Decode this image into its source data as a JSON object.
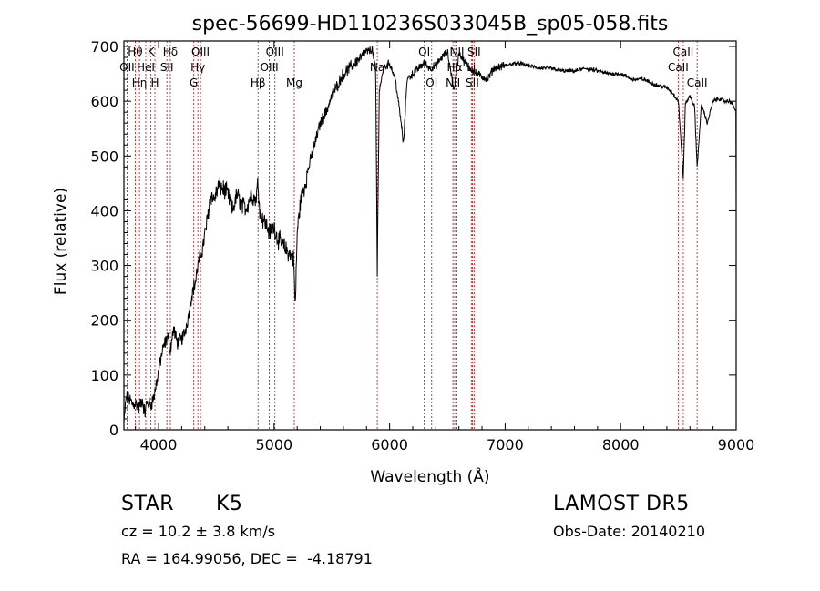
{
  "chart_data": {
    "type": "line",
    "title": "spec-56699-HD110236S033045B_sp05-058.fits",
    "xlabel": "Wavelength (Å)",
    "ylabel": "Flux (relative)",
    "xlim": [
      3700,
      9000
    ],
    "ylim": [
      0,
      710
    ],
    "xticks": [
      4000,
      5000,
      6000,
      7000,
      8000,
      9000
    ],
    "yticks": [
      0,
      100,
      200,
      300,
      400,
      500,
      600,
      700
    ],
    "grid": false,
    "line_color": "#000000",
    "marker_color": "#cc0000",
    "series": [
      {
        "x": [
          3700,
          3720,
          3750,
          3780,
          3800,
          3830,
          3860,
          3880,
          3900,
          3930,
          3960,
          3990,
          4010,
          4030,
          4050,
          4080,
          4100,
          4130,
          4160,
          4200,
          4230,
          4260,
          4290,
          4320,
          4340,
          4380,
          4420,
          4450,
          4480,
          4520,
          4560,
          4600,
          4640,
          4680,
          4720,
          4760,
          4800,
          4840,
          4860,
          4880,
          4920,
          4960,
          5000,
          5030,
          5060,
          5100,
          5140,
          5170,
          5183,
          5200,
          5230,
          5270,
          5300,
          5350,
          5400,
          5450,
          5500,
          5550,
          5600,
          5650,
          5700,
          5750,
          5800,
          5850,
          5880,
          5893,
          5910,
          5950,
          6000,
          6050,
          6100,
          6120,
          6150,
          6200,
          6250,
          6300,
          6350,
          6400,
          6450,
          6500,
          6560,
          6600,
          6650,
          6700,
          6750,
          6800,
          6850,
          6900,
          7000,
          7100,
          7200,
          7300,
          7400,
          7500,
          7600,
          7700,
          7800,
          7900,
          8000,
          8100,
          8200,
          8300,
          8400,
          8450,
          8500,
          8542,
          8560,
          8600,
          8640,
          8662,
          8700,
          8750,
          8800,
          8850,
          8900,
          8950,
          8980,
          9000
        ],
        "y": [
          10,
          60,
          55,
          45,
          50,
          40,
          55,
          30,
          50,
          45,
          60,
          95,
          120,
          140,
          155,
          170,
          145,
          185,
          160,
          165,
          180,
          210,
          250,
          270,
          300,
          330,
          380,
          430,
          420,
          445,
          440,
          430,
          400,
          430,
          410,
          405,
          430,
          420,
          450,
          395,
          380,
          360,
          370,
          350,
          340,
          330,
          320,
          310,
          220,
          360,
          420,
          450,
          480,
          520,
          560,
          580,
          610,
          630,
          650,
          660,
          670,
          680,
          690,
          695,
          650,
          280,
          620,
          660,
          670,
          640,
          560,
          520,
          640,
          650,
          660,
          670,
          660,
          665,
          680,
          690,
          620,
          690,
          670,
          660,
          650,
          645,
          640,
          660,
          665,
          670,
          665,
          660,
          660,
          655,
          655,
          660,
          655,
          650,
          650,
          640,
          640,
          630,
          625,
          615,
          600,
          460,
          595,
          610,
          590,
          480,
          595,
          560,
          600,
          605,
          600,
          600,
          590,
          580
        ]
      }
    ],
    "lines": [
      {
        "wavelength": 3727,
        "label": "OII",
        "row": 1
      },
      {
        "wavelength": 3798,
        "label": "Hθ",
        "row": 0
      },
      {
        "wavelength": 3835,
        "label": "Hη",
        "row": 2
      },
      {
        "wavelength": 3889,
        "label": "HeI",
        "row": 1
      },
      {
        "wavelength": 3934,
        "label": "K",
        "row": 0
      },
      {
        "wavelength": 3968,
        "label": "H",
        "row": 2
      },
      {
        "wavelength": 4102,
        "label": "Hδ",
        "row": 0
      },
      {
        "wavelength": 4072,
        "label": "SII",
        "row": 1
      },
      {
        "wavelength": 4305,
        "label": "G",
        "row": 2
      },
      {
        "wavelength": 4340,
        "label": "Hγ",
        "row": 1
      },
      {
        "wavelength": 4363,
        "label": "OIII",
        "row": 0
      },
      {
        "wavelength": 4861,
        "label": "Hβ",
        "row": 2
      },
      {
        "wavelength": 4959,
        "label": "OIII",
        "row": 1
      },
      {
        "wavelength": 5007,
        "label": "OIII",
        "row": 0
      },
      {
        "wavelength": 5175,
        "label": "Mg",
        "row": 2
      },
      {
        "wavelength": 5893,
        "label": "Na",
        "row": 1
      },
      {
        "wavelength": 6300,
        "label": "OI",
        "row": 0
      },
      {
        "wavelength": 6364,
        "label": "OI",
        "row": 2
      },
      {
        "wavelength": 6548,
        "label": "NII",
        "row": 2
      },
      {
        "wavelength": 6563,
        "label": "Hα",
        "row": 1
      },
      {
        "wavelength": 6583,
        "label": "NII",
        "row": 0
      },
      {
        "wavelength": 6707,
        "label": "Li",
        "row": 1
      },
      {
        "wavelength": 6716,
        "label": "SII",
        "row": 2
      },
      {
        "wavelength": 6731,
        "label": "SII",
        "row": 0
      },
      {
        "wavelength": 8498,
        "label": "CaII",
        "row": 1
      },
      {
        "wavelength": 8542,
        "label": "CaII",
        "row": 0
      },
      {
        "wavelength": 8662,
        "label": "CaII",
        "row": 2
      }
    ]
  },
  "info": {
    "object_class": "STAR",
    "subclass": "K5",
    "survey": "LAMOST DR5",
    "cz": "cz = 10.2 ± 3.8 km/s",
    "obs_date": "Obs-Date: 20140210",
    "coords": "RA = 164.99056, DEC =  -4.18791"
  }
}
